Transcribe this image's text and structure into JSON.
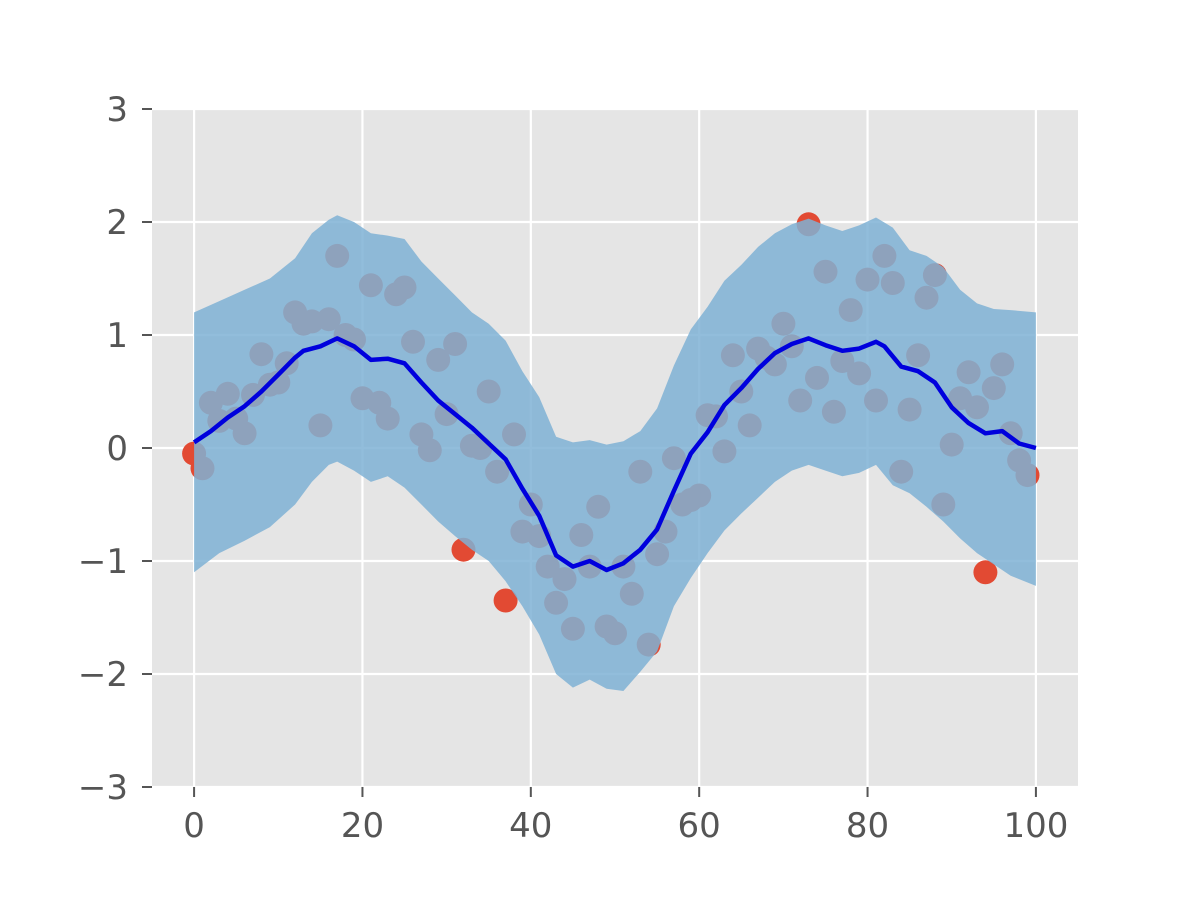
{
  "chart_data": {
    "type": "scatter",
    "title": "",
    "xlabel": "",
    "ylabel": "",
    "xlim": [
      -5,
      105
    ],
    "ylim": [
      -3,
      3
    ],
    "x_ticks": [
      0,
      20,
      40,
      60,
      80,
      100
    ],
    "y_ticks": [
      -3,
      -2,
      -1,
      0,
      1,
      2,
      3
    ],
    "x_tick_labels": [
      "0",
      "20",
      "40",
      "60",
      "80",
      "100"
    ],
    "y_tick_labels": [
      "−3",
      "−2",
      "−1",
      "0",
      "1",
      "2",
      "3"
    ],
    "grid": true,
    "legend": "none",
    "colors": {
      "background": "#e5e5e5",
      "grid": "#ffffff",
      "band": "#7fb2d5",
      "band_opacity": 0.85,
      "mean_line": "#0000dd",
      "points": "#e24a33",
      "tick_text": "#555555"
    },
    "points": [
      [
        0,
        -0.05
      ],
      [
        1,
        -0.18
      ],
      [
        2,
        0.4
      ],
      [
        3,
        0.24
      ],
      [
        4,
        0.48
      ],
      [
        5,
        0.26
      ],
      [
        6,
        0.13
      ],
      [
        7,
        0.47
      ],
      [
        8,
        0.83
      ],
      [
        9,
        0.56
      ],
      [
        10,
        0.58
      ],
      [
        11,
        0.75
      ],
      [
        12,
        1.2
      ],
      [
        13,
        1.1
      ],
      [
        14,
        1.12
      ],
      [
        15,
        0.2
      ],
      [
        16,
        1.14
      ],
      [
        17,
        1.7
      ],
      [
        18,
        1.0
      ],
      [
        19,
        0.96
      ],
      [
        20,
        0.44
      ],
      [
        21,
        1.44
      ],
      [
        22,
        0.4
      ],
      [
        23,
        0.26
      ],
      [
        24,
        1.36
      ],
      [
        25,
        1.42
      ],
      [
        26,
        0.94
      ],
      [
        27,
        0.12
      ],
      [
        28,
        -0.02
      ],
      [
        29,
        0.78
      ],
      [
        30,
        0.3
      ],
      [
        31,
        0.92
      ],
      [
        32,
        -0.9
      ],
      [
        33,
        0.02
      ],
      [
        34,
        0.0
      ],
      [
        35,
        0.5
      ],
      [
        36,
        -0.21
      ],
      [
        37,
        -1.35
      ],
      [
        38,
        0.12
      ],
      [
        39,
        -0.74
      ],
      [
        40,
        -0.5
      ],
      [
        41,
        -0.78
      ],
      [
        42,
        -1.05
      ],
      [
        43,
        -1.37
      ],
      [
        44,
        -1.16
      ],
      [
        45,
        -1.6
      ],
      [
        46,
        -0.77
      ],
      [
        47,
        -1.05
      ],
      [
        48,
        -0.52
      ],
      [
        49,
        -1.58
      ],
      [
        50,
        -1.64
      ],
      [
        51,
        -1.05
      ],
      [
        52,
        -1.29
      ],
      [
        53,
        -0.21
      ],
      [
        54,
        -1.74
      ],
      [
        55,
        -0.94
      ],
      [
        56,
        -0.74
      ],
      [
        57,
        -0.09
      ],
      [
        58,
        -0.5
      ],
      [
        59,
        -0.46
      ],
      [
        60,
        -0.42
      ],
      [
        61,
        0.29
      ],
      [
        62,
        0.28
      ],
      [
        63,
        -0.03
      ],
      [
        64,
        0.82
      ],
      [
        65,
        0.5
      ],
      [
        66,
        0.2
      ],
      [
        67,
        0.88
      ],
      [
        68,
        0.8
      ],
      [
        69,
        0.74
      ],
      [
        70,
        1.1
      ],
      [
        71,
        0.9
      ],
      [
        72,
        0.42
      ],
      [
        73,
        1.98
      ],
      [
        74,
        0.62
      ],
      [
        75,
        1.56
      ],
      [
        76,
        0.32
      ],
      [
        77,
        0.77
      ],
      [
        78,
        1.22
      ],
      [
        79,
        0.66
      ],
      [
        80,
        1.49
      ],
      [
        81,
        0.42
      ],
      [
        82,
        1.7
      ],
      [
        83,
        1.46
      ],
      [
        84,
        -0.21
      ],
      [
        85,
        0.34
      ],
      [
        86,
        0.82
      ],
      [
        87,
        1.33
      ],
      [
        88,
        1.53
      ],
      [
        89,
        -0.5
      ],
      [
        90,
        0.03
      ],
      [
        91,
        0.44
      ],
      [
        92,
        0.67
      ],
      [
        93,
        0.36
      ],
      [
        94,
        -1.1
      ],
      [
        95,
        0.53
      ],
      [
        96,
        0.74
      ],
      [
        97,
        0.13
      ],
      [
        98,
        -0.11
      ],
      [
        99,
        -0.24
      ]
    ],
    "mean_line": [
      [
        0,
        0.05
      ],
      [
        2,
        0.15
      ],
      [
        4,
        0.27
      ],
      [
        6,
        0.37
      ],
      [
        8,
        0.5
      ],
      [
        10,
        0.65
      ],
      [
        12,
        0.8
      ],
      [
        13,
        0.86
      ],
      [
        15,
        0.9
      ],
      [
        17,
        0.97
      ],
      [
        19,
        0.9
      ],
      [
        21,
        0.78
      ],
      [
        23,
        0.79
      ],
      [
        25,
        0.75
      ],
      [
        27,
        0.58
      ],
      [
        29,
        0.42
      ],
      [
        31,
        0.3
      ],
      [
        33,
        0.18
      ],
      [
        35,
        0.04
      ],
      [
        37,
        -0.1
      ],
      [
        39,
        -0.36
      ],
      [
        41,
        -0.6
      ],
      [
        43,
        -0.95
      ],
      [
        45,
        -1.05
      ],
      [
        47,
        -1.0
      ],
      [
        49,
        -1.08
      ],
      [
        51,
        -1.02
      ],
      [
        53,
        -0.9
      ],
      [
        55,
        -0.72
      ],
      [
        57,
        -0.38
      ],
      [
        59,
        -0.05
      ],
      [
        61,
        0.14
      ],
      [
        63,
        0.38
      ],
      [
        65,
        0.53
      ],
      [
        67,
        0.7
      ],
      [
        69,
        0.84
      ],
      [
        71,
        0.92
      ],
      [
        73,
        0.97
      ],
      [
        75,
        0.91
      ],
      [
        77,
        0.86
      ],
      [
        79,
        0.88
      ],
      [
        81,
        0.94
      ],
      [
        82,
        0.9
      ],
      [
        84,
        0.72
      ],
      [
        86,
        0.68
      ],
      [
        88,
        0.58
      ],
      [
        90,
        0.36
      ],
      [
        92,
        0.22
      ],
      [
        94,
        0.13
      ],
      [
        96,
        0.15
      ],
      [
        98,
        0.04
      ],
      [
        100,
        0.0
      ]
    ],
    "band_upper": [
      [
        0,
        1.2
      ],
      [
        3,
        1.3
      ],
      [
        6,
        1.4
      ],
      [
        9,
        1.5
      ],
      [
        12,
        1.68
      ],
      [
        14,
        1.9
      ],
      [
        16,
        2.02
      ],
      [
        17,
        2.06
      ],
      [
        19,
        2.0
      ],
      [
        21,
        1.9
      ],
      [
        23,
        1.88
      ],
      [
        25,
        1.85
      ],
      [
        27,
        1.65
      ],
      [
        29,
        1.5
      ],
      [
        31,
        1.35
      ],
      [
        33,
        1.2
      ],
      [
        35,
        1.1
      ],
      [
        37,
        0.95
      ],
      [
        39,
        0.68
      ],
      [
        41,
        0.45
      ],
      [
        43,
        0.1
      ],
      [
        45,
        0.05
      ],
      [
        47,
        0.07
      ],
      [
        49,
        0.03
      ],
      [
        51,
        0.06
      ],
      [
        53,
        0.15
      ],
      [
        55,
        0.35
      ],
      [
        57,
        0.73
      ],
      [
        59,
        1.05
      ],
      [
        61,
        1.25
      ],
      [
        63,
        1.48
      ],
      [
        65,
        1.62
      ],
      [
        67,
        1.78
      ],
      [
        69,
        1.9
      ],
      [
        71,
        1.98
      ],
      [
        73,
        2.03
      ],
      [
        75,
        1.97
      ],
      [
        77,
        1.92
      ],
      [
        79,
        1.97
      ],
      [
        81,
        2.04
      ],
      [
        83,
        1.95
      ],
      [
        85,
        1.75
      ],
      [
        87,
        1.7
      ],
      [
        89,
        1.6
      ],
      [
        91,
        1.4
      ],
      [
        93,
        1.28
      ],
      [
        95,
        1.23
      ],
      [
        97,
        1.22
      ],
      [
        100,
        1.2
      ]
    ],
    "band_lower": [
      [
        0,
        -1.1
      ],
      [
        3,
        -0.93
      ],
      [
        6,
        -0.82
      ],
      [
        9,
        -0.7
      ],
      [
        12,
        -0.5
      ],
      [
        14,
        -0.3
      ],
      [
        16,
        -0.15
      ],
      [
        17,
        -0.12
      ],
      [
        19,
        -0.2
      ],
      [
        21,
        -0.3
      ],
      [
        23,
        -0.25
      ],
      [
        25,
        -0.35
      ],
      [
        27,
        -0.5
      ],
      [
        29,
        -0.65
      ],
      [
        31,
        -0.78
      ],
      [
        33,
        -0.9
      ],
      [
        35,
        -1.0
      ],
      [
        37,
        -1.18
      ],
      [
        39,
        -1.4
      ],
      [
        41,
        -1.65
      ],
      [
        43,
        -2.0
      ],
      [
        45,
        -2.12
      ],
      [
        47,
        -2.05
      ],
      [
        49,
        -2.13
      ],
      [
        51,
        -2.15
      ],
      [
        53,
        -1.98
      ],
      [
        55,
        -1.8
      ],
      [
        57,
        -1.4
      ],
      [
        59,
        -1.15
      ],
      [
        61,
        -0.93
      ],
      [
        63,
        -0.73
      ],
      [
        65,
        -0.58
      ],
      [
        67,
        -0.44
      ],
      [
        69,
        -0.3
      ],
      [
        71,
        -0.2
      ],
      [
        73,
        -0.15
      ],
      [
        75,
        -0.2
      ],
      [
        77,
        -0.25
      ],
      [
        79,
        -0.22
      ],
      [
        81,
        -0.15
      ],
      [
        83,
        -0.33
      ],
      [
        85,
        -0.4
      ],
      [
        87,
        -0.52
      ],
      [
        89,
        -0.65
      ],
      [
        91,
        -0.8
      ],
      [
        93,
        -0.93
      ],
      [
        95,
        -1.03
      ],
      [
        97,
        -1.13
      ],
      [
        100,
        -1.22
      ]
    ]
  }
}
